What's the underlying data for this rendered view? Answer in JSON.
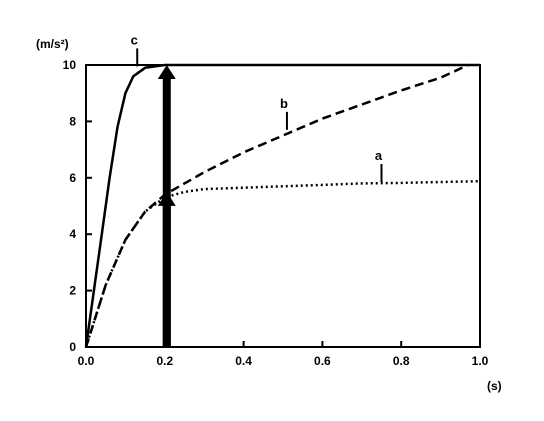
{
  "chart_data": {
    "type": "line",
    "x_unit": "(s)",
    "y_unit": "(m/s²)",
    "xlim": [
      0.0,
      1.0
    ],
    "ylim": [
      0,
      10
    ],
    "x_ticks": [
      "0.0",
      "0.2",
      "0.4",
      "0.6",
      "0.8",
      "1.0"
    ],
    "y_ticks": [
      "0",
      "2",
      "4",
      "6",
      "8",
      "10"
    ],
    "grid": false,
    "series": [
      {
        "name": "a",
        "style": "dotted",
        "points": [
          [
            0.0,
            0.0
          ],
          [
            0.05,
            2.2
          ],
          [
            0.1,
            3.8
          ],
          [
            0.15,
            4.8
          ],
          [
            0.2,
            5.3
          ],
          [
            0.25,
            5.5
          ],
          [
            0.3,
            5.6
          ],
          [
            0.4,
            5.65
          ],
          [
            0.5,
            5.7
          ],
          [
            0.6,
            5.75
          ],
          [
            0.7,
            5.8
          ],
          [
            0.8,
            5.82
          ],
          [
            0.9,
            5.85
          ],
          [
            1.0,
            5.88
          ]
        ],
        "label": "a",
        "label_at": [
          0.75,
          5.85
        ]
      },
      {
        "name": "b",
        "style": "dashed",
        "points": [
          [
            0.0,
            0.0
          ],
          [
            0.05,
            2.2
          ],
          [
            0.1,
            3.8
          ],
          [
            0.15,
            4.8
          ],
          [
            0.2,
            5.4
          ],
          [
            0.25,
            5.8
          ],
          [
            0.3,
            6.2
          ],
          [
            0.4,
            6.9
          ],
          [
            0.5,
            7.5
          ],
          [
            0.6,
            8.1
          ],
          [
            0.7,
            8.6
          ],
          [
            0.8,
            9.1
          ],
          [
            0.9,
            9.55
          ],
          [
            0.97,
            10.0
          ]
        ],
        "label": "b",
        "label_at": [
          0.51,
          7.7
        ]
      },
      {
        "name": "c",
        "style": "solid",
        "points": [
          [
            0.0,
            0.0
          ],
          [
            0.02,
            2.0
          ],
          [
            0.04,
            4.0
          ],
          [
            0.06,
            6.0
          ],
          [
            0.08,
            7.8
          ],
          [
            0.1,
            9.0
          ],
          [
            0.12,
            9.6
          ],
          [
            0.15,
            9.9
          ],
          [
            0.2,
            10.0
          ],
          [
            1.0,
            10.0
          ]
        ],
        "label": "c",
        "label_at": [
          0.13,
          9.95
        ]
      }
    ],
    "arrows": [
      {
        "x": 0.205,
        "from": 0,
        "to": 10.0
      },
      {
        "x": 0.205,
        "from": 0,
        "to": 5.5
      }
    ]
  }
}
